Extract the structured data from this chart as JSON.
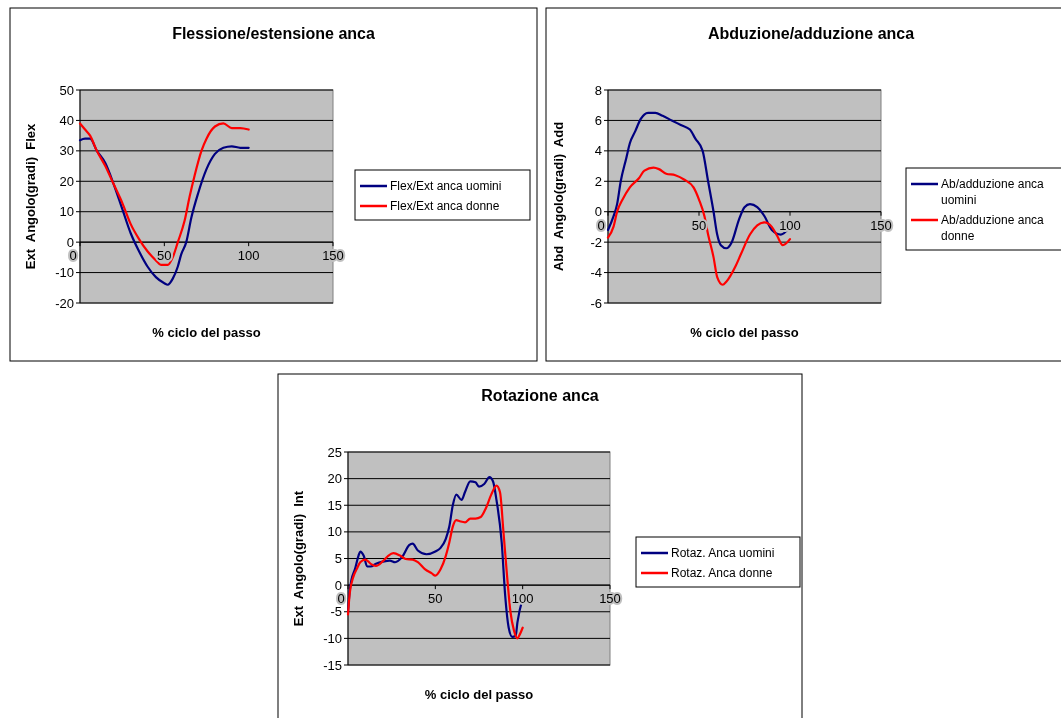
{
  "chart_data": [
    {
      "type": "line",
      "title": "Flessione/estensione anca",
      "xlabel": "% ciclo del passo",
      "ylabel": "Ext  Angolo(gradi)  Flex",
      "xlim": [
        0,
        150
      ],
      "xticks": [
        0,
        50,
        100,
        150
      ],
      "ylim": [
        -20,
        50
      ],
      "yticks": [
        -20,
        -10,
        0,
        10,
        20,
        30,
        40,
        50
      ],
      "grid": "y",
      "legend": "right",
      "series": [
        {
          "name": "Flex/Ext anca uomini",
          "color": "#000080",
          "x": [
            0,
            3,
            6,
            10,
            15,
            20,
            25,
            30,
            35,
            40,
            45,
            50,
            52,
            55,
            58,
            60,
            63,
            66,
            70,
            75,
            80,
            85,
            90,
            95,
            100
          ],
          "values": [
            33.5,
            34,
            34,
            30,
            26,
            19,
            11,
            3,
            -3,
            -8,
            -11.5,
            -13.5,
            -14,
            -12,
            -8,
            -4,
            0,
            8,
            16,
            24,
            29,
            31,
            31.5,
            31,
            31
          ]
        },
        {
          "name": "Flex/Ext anca donne",
          "color": "#ff0000",
          "x": [
            0,
            3,
            6,
            10,
            15,
            20,
            25,
            30,
            35,
            40,
            45,
            48,
            52,
            55,
            58,
            62,
            65,
            68,
            72,
            75,
            80,
            85,
            90,
            95,
            100
          ],
          "values": [
            39,
            37,
            35,
            30,
            25,
            19,
            13,
            6,
            1,
            -3,
            -6,
            -7.5,
            -7.5,
            -5,
            0,
            7,
            15,
            22,
            30,
            34,
            38,
            39,
            37.5,
            37.5,
            37
          ]
        }
      ]
    },
    {
      "type": "line",
      "title": "Abduzione/adduzione anca",
      "xlabel": "% ciclo del passo",
      "ylabel": "Abd  Angolo(gradi)  Add",
      "xlim": [
        0,
        150
      ],
      "xticks": [
        0,
        50,
        100,
        150
      ],
      "ylim": [
        -6,
        8
      ],
      "yticks": [
        -6,
        -4,
        -2,
        0,
        2,
        4,
        6,
        8
      ],
      "grid": "y",
      "legend": "right",
      "series": [
        {
          "name": "Ab/adduzione anca uomini",
          "color": "#000080",
          "x": [
            0,
            3,
            5,
            7,
            10,
            12,
            15,
            18,
            22,
            26,
            30,
            35,
            40,
            45,
            48,
            52,
            55,
            58,
            60,
            62,
            65,
            68,
            72,
            75,
            78,
            82,
            86,
            90,
            95,
            100
          ],
          "values": [
            -1.2,
            -0.3,
            0.5,
            2,
            3.5,
            4.5,
            5.3,
            6.1,
            6.5,
            6.5,
            6.3,
            6,
            5.7,
            5.4,
            4.8,
            4,
            2,
            0,
            -1.5,
            -2.2,
            -2.4,
            -2,
            -0.5,
            0.3,
            0.5,
            0.3,
            -0.3,
            -1.2,
            -1.5,
            -1
          ]
        },
        {
          "name": "Ab/adduzione anca donne",
          "color": "#ff0000",
          "x": [
            0,
            3,
            5,
            8,
            12,
            17,
            20,
            25,
            28,
            32,
            37,
            42,
            47,
            50,
            53,
            55,
            58,
            60,
            63,
            65,
            70,
            73,
            78,
            82,
            86,
            90,
            93,
            96,
            100
          ],
          "values": [
            -1.7,
            -1,
            0,
            0.8,
            1.6,
            2.2,
            2.7,
            2.9,
            2.8,
            2.5,
            2.4,
            2.1,
            1.6,
            0.8,
            -0.3,
            -1.5,
            -3,
            -4.3,
            -4.8,
            -4.6,
            -3.6,
            -2.8,
            -1.5,
            -0.9,
            -0.7,
            -1,
            -1.6,
            -2.2,
            -1.8
          ]
        }
      ]
    },
    {
      "type": "line",
      "title": "Rotazione anca",
      "xlabel": "% ciclo del passo",
      "ylabel": "Ext  Angolo(gradi)  Int",
      "xlim": [
        0,
        150
      ],
      "xticks": [
        0,
        50,
        100,
        150
      ],
      "ylim": [
        -15,
        25
      ],
      "yticks": [
        -15,
        -10,
        -5,
        0,
        5,
        10,
        15,
        20,
        25
      ],
      "grid": "y",
      "legend": "right",
      "series": [
        {
          "name": "Rotaz. Anca uomini",
          "color": "#000080",
          "x": [
            0,
            1,
            2,
            4,
            6,
            7,
            9,
            11,
            13,
            16,
            20,
            24,
            27,
            31,
            35,
            37,
            40,
            45,
            50,
            53,
            56,
            58,
            60,
            62,
            65,
            67,
            70,
            73,
            75,
            78,
            81,
            83,
            85,
            88,
            90,
            92,
            94,
            96,
            97,
            100
          ],
          "values": [
            -5,
            -1,
            1,
            3,
            5.5,
            6.3,
            5.5,
            3.5,
            3.5,
            4,
            4.4,
            4.6,
            4.3,
            5.3,
            7.5,
            7.8,
            6.5,
            5.8,
            6.3,
            7,
            8.7,
            11,
            15,
            17,
            16,
            17.5,
            19.5,
            19.3,
            18.5,
            19,
            20.3,
            19.5,
            16,
            8,
            -2,
            -8,
            -9.7,
            -9.5,
            -7,
            -2.5
          ]
        },
        {
          "name": "Rotaz. Anca donne",
          "color": "#ff0000",
          "x": [
            0,
            1,
            3,
            5,
            7,
            10,
            13,
            16,
            20,
            23,
            26,
            30,
            33,
            37,
            40,
            44,
            48,
            50,
            53,
            56,
            58,
            60,
            62,
            64,
            67,
            70,
            73,
            76,
            79,
            82,
            85,
            87,
            89,
            91,
            93,
            95,
            97,
            98,
            100
          ],
          "values": [
            -5.5,
            -1.5,
            1.5,
            3,
            4.3,
            4.8,
            4,
            3.6,
            4.5,
            5.5,
            6,
            5.5,
            4.9,
            4.8,
            4.3,
            3,
            2.2,
            1.8,
            3,
            5.5,
            8,
            11,
            12.2,
            12,
            11.8,
            12.5,
            12.5,
            12.8,
            14.5,
            17,
            18.7,
            17.5,
            10,
            2,
            -5,
            -8.5,
            -10,
            -9.5,
            -8
          ]
        }
      ]
    }
  ]
}
